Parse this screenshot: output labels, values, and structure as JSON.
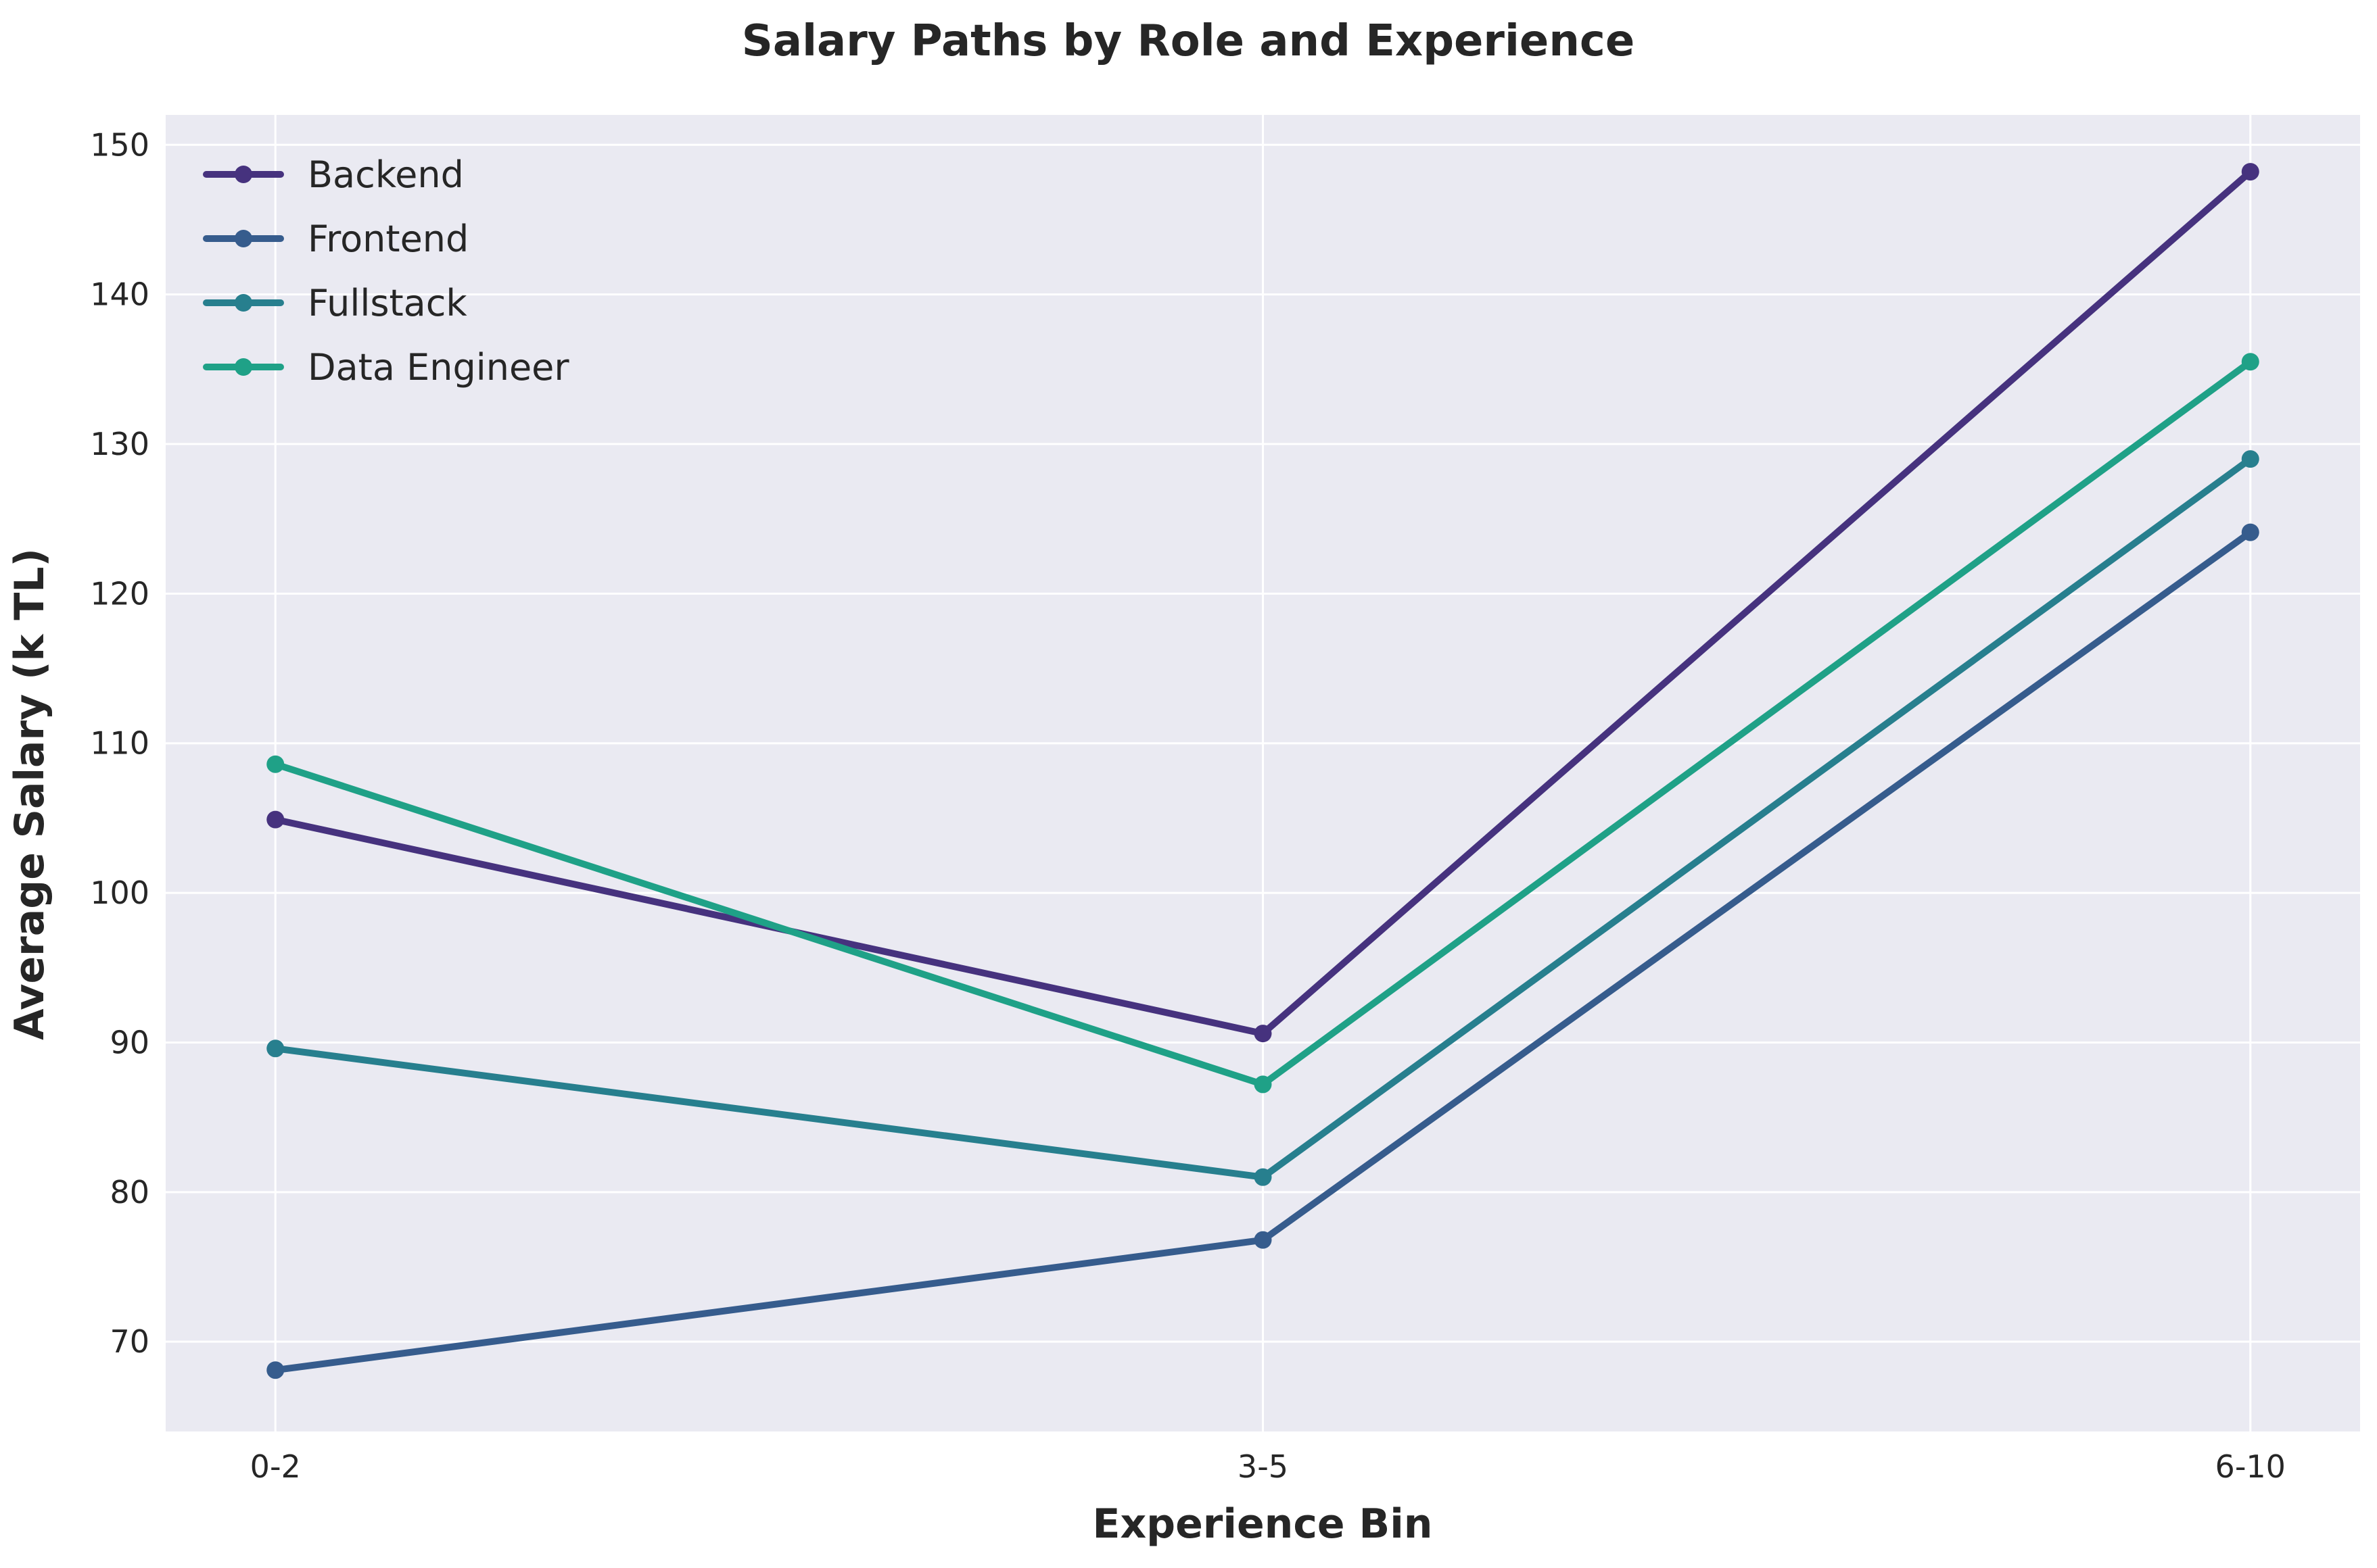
{
  "chart_data": {
    "type": "line",
    "title": "Salary Paths by Role and Experience",
    "xlabel": "Experience Bin",
    "ylabel": "Average Salary (k TL)",
    "categories": [
      "0-2",
      "3-5",
      "6-10"
    ],
    "ylim": [
      64,
      152
    ],
    "yticks": [
      70,
      80,
      90,
      100,
      110,
      120,
      130,
      140,
      150
    ],
    "grid": true,
    "legend_position": "upper-left",
    "series": [
      {
        "name": "Backend",
        "color": "#46327e",
        "values": [
          104.9,
          90.6,
          148.2
        ]
      },
      {
        "name": "Frontend",
        "color": "#365c8d",
        "values": [
          68.1,
          76.8,
          124.1
        ]
      },
      {
        "name": "Fullstack",
        "color": "#277f8e",
        "values": [
          89.6,
          81.0,
          129.0
        ]
      },
      {
        "name": "Data Engineer",
        "color": "#1fa187",
        "values": [
          108.6,
          87.2,
          135.5
        ]
      }
    ]
  },
  "style": {
    "plot_background": "#eaeaf2",
    "grid_color": "#ffffff"
  }
}
